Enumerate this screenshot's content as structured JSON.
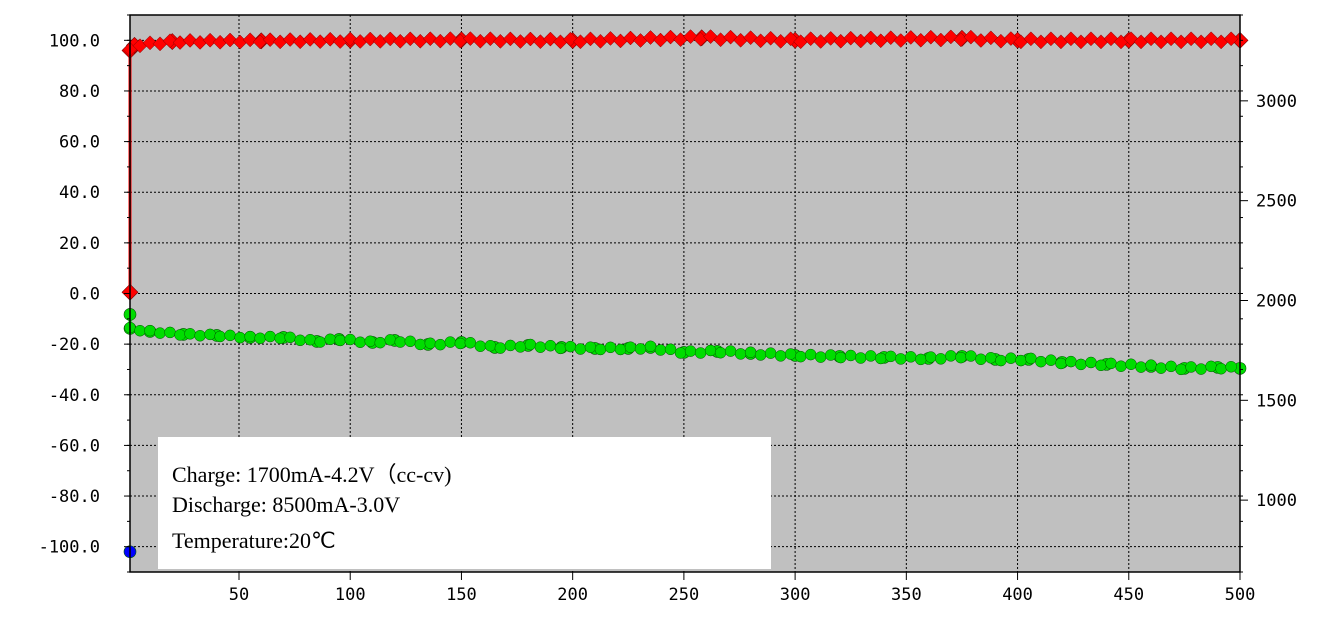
{
  "chart_data": {
    "type": "scatter",
    "title": "",
    "xlabel": "",
    "ylabel": "",
    "y2label": "",
    "xlim": [
      1,
      500
    ],
    "ylim": [
      -110,
      110
    ],
    "y2lim": [
      640,
      3430
    ],
    "x_ticks": [
      50,
      100,
      150,
      200,
      250,
      300,
      350,
      400,
      450,
      500
    ],
    "x_tick_labels": [
      "50",
      "100",
      "150",
      "200",
      "250",
      "300",
      "350",
      "400",
      "450",
      "500"
    ],
    "y_ticks": [
      100,
      80,
      60,
      40,
      20,
      0,
      -20,
      -40,
      -60,
      -80,
      -100
    ],
    "y_tick_labels": [
      "100.0",
      "80.0",
      "60.0",
      "40.0",
      "20.0",
      "0.0",
      "-20.0",
      "-40.0",
      "-60.0",
      "-80.0",
      "-100.0"
    ],
    "y2_ticks": [
      3000,
      2500,
      2000,
      1500,
      1000
    ],
    "y2_tick_labels": [
      "3000",
      "2500",
      "2000",
      "1500",
      "1000"
    ],
    "grid": true,
    "background": "#c0c0c0",
    "series": [
      {
        "axis": "left",
        "color": "#ff0000",
        "marker": "diamond",
        "points": [
          [
            1,
            0.5
          ],
          [
            1,
            96
          ],
          [
            3,
            98
          ],
          [
            20,
            99.5
          ],
          [
            60,
            99.8
          ],
          [
            100,
            100
          ],
          [
            150,
            100.2
          ],
          [
            200,
            99.9
          ],
          [
            258,
            101
          ],
          [
            300,
            100
          ],
          [
            375,
            100.8
          ],
          [
            400,
            100
          ],
          [
            450,
            100
          ],
          [
            500,
            100
          ]
        ]
      },
      {
        "axis": "right",
        "color": "#00dd00",
        "marker": "circle",
        "points": [
          [
            1,
            1930
          ],
          [
            1,
            1860
          ],
          [
            10,
            1845
          ],
          [
            25,
            1830
          ],
          [
            40,
            1825
          ],
          [
            55,
            1815
          ],
          [
            70,
            1815
          ],
          [
            85,
            1795
          ],
          [
            95,
            1805
          ],
          [
            110,
            1790
          ],
          [
            120,
            1800
          ],
          [
            135,
            1780
          ],
          [
            150,
            1790
          ],
          [
            165,
            1765
          ],
          [
            180,
            1775
          ],
          [
            195,
            1765
          ],
          [
            210,
            1760
          ],
          [
            225,
            1760
          ],
          [
            235,
            1765
          ],
          [
            250,
            1740
          ],
          [
            265,
            1745
          ],
          [
            280,
            1735
          ],
          [
            300,
            1725
          ],
          [
            320,
            1720
          ],
          [
            340,
            1715
          ],
          [
            360,
            1710
          ],
          [
            375,
            1720
          ],
          [
            390,
            1705
          ],
          [
            405,
            1705
          ],
          [
            420,
            1690
          ],
          [
            440,
            1680
          ],
          [
            460,
            1670
          ],
          [
            475,
            1660
          ],
          [
            490,
            1665
          ],
          [
            500,
            1660
          ]
        ]
      },
      {
        "axis": "left",
        "color": "#0000ff",
        "marker": "circle",
        "points": [
          [
            1,
            -102
          ]
        ]
      }
    ]
  },
  "notes": {
    "line1": "Charge: 1700mA-4.2V（cc-cv)",
    "line2": "Discharge: 8500mA-3.0V",
    "line3": "Temperature:20℃"
  }
}
